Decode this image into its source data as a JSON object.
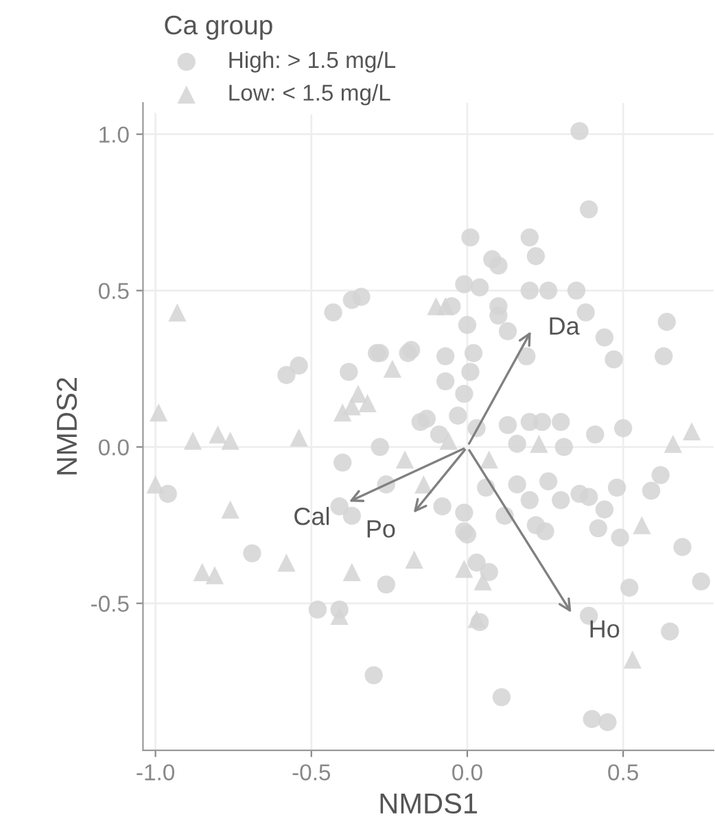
{
  "chart_data": {
    "type": "scatter",
    "xlabel": "NMDS1",
    "ylabel": "NMDS2",
    "legend_title": "Ca group",
    "legend": "top left",
    "grid": true,
    "annotations": [
      "Da",
      "Cal",
      "Po",
      "Ho"
    ],
    "xlim": [
      -1.04,
      0.79
    ],
    "ylim": [
      -0.97,
      1.1
    ],
    "xticks": [
      {
        "value": -1.0,
        "label": "-1.0"
      },
      {
        "value": -0.5,
        "label": "-0.5"
      },
      {
        "value": 0.0,
        "label": "0.0"
      },
      {
        "value": 0.5,
        "label": "0.5"
      }
    ],
    "yticks": [
      {
        "value": -0.5,
        "label": "-0.5"
      },
      {
        "value": 0.0,
        "label": "0.0"
      },
      {
        "value": 0.5,
        "label": "0.5"
      },
      {
        "value": 1.0,
        "label": "1.0"
      }
    ],
    "series": [
      {
        "name": "High: > 1.5 mg/L",
        "color": "#d3d3d3",
        "marker": "circle",
        "x": [
          0.01,
          0.2,
          0.08,
          0.1,
          0.22,
          -0.01,
          0.04,
          0.2,
          0.26,
          0.35,
          -0.05,
          0.1,
          0.1,
          0.13,
          0.38,
          0.64,
          0.44,
          0.47,
          0.63,
          0.0,
          0.19,
          0.02,
          -0.07,
          0.01,
          -0.07,
          -0.01,
          -0.18,
          0.36,
          0.39,
          -0.15,
          -0.13,
          -0.09,
          -0.03,
          0.03,
          0.13,
          0.2,
          0.24,
          0.3,
          0.16,
          0.31,
          0.41,
          0.5,
          -0.43,
          -0.37,
          -0.34,
          -0.58,
          -0.54,
          -0.38,
          -0.29,
          -0.28,
          -0.19,
          -0.28,
          -0.4,
          -0.96,
          -0.26,
          -0.41,
          -0.37,
          -0.69,
          -0.26,
          -0.48,
          -0.41,
          -0.3,
          0.16,
          0.26,
          0.06,
          0.2,
          0.3,
          0.36,
          0.39,
          0.44,
          0.48,
          0.62,
          0.59,
          -0.08,
          -0.01,
          0.12,
          0.22,
          0.25,
          -0.01,
          0.0,
          0.42,
          0.49,
          0.69,
          0.03,
          0.07,
          0.52,
          0.75,
          0.39,
          0.04,
          0.65,
          0.11,
          0.4,
          0.45
        ],
        "values": [
          0.67,
          0.67,
          0.6,
          0.58,
          0.61,
          0.52,
          0.51,
          0.5,
          0.5,
          0.5,
          0.45,
          0.45,
          0.42,
          0.37,
          0.43,
          0.4,
          0.35,
          0.28,
          0.29,
          0.39,
          0.29,
          0.3,
          0.29,
          0.24,
          0.21,
          0.17,
          0.31,
          1.01,
          0.76,
          0.08,
          0.09,
          0.04,
          0.1,
          0.06,
          0.07,
          0.08,
          0.08,
          0.08,
          0.01,
          0.0,
          0.04,
          0.06,
          0.43,
          0.47,
          0.48,
          0.23,
          0.26,
          0.24,
          0.3,
          0.3,
          0.3,
          0.0,
          -0.05,
          -0.15,
          -0.12,
          -0.19,
          -0.22,
          -0.34,
          -0.44,
          -0.52,
          -0.52,
          -0.73,
          -0.12,
          -0.11,
          -0.13,
          -0.17,
          -0.17,
          -0.15,
          -0.16,
          -0.2,
          -0.13,
          -0.09,
          -0.14,
          -0.19,
          -0.21,
          -0.22,
          -0.25,
          -0.27,
          -0.27,
          -0.28,
          -0.26,
          -0.29,
          -0.32,
          -0.37,
          -0.4,
          -0.45,
          -0.43,
          -0.54,
          -0.56,
          -0.59,
          -0.8,
          -0.87,
          -0.88
        ]
      },
      {
        "name": "Low: < 1.5 mg/L",
        "color": "#d3d3d3",
        "marker": "triangle",
        "x": [
          -0.1,
          -0.07,
          -0.06,
          0.23,
          0.66,
          0.72,
          -0.93,
          -0.24,
          -0.35,
          -0.32,
          -0.4,
          -0.37,
          -0.99,
          -0.88,
          -0.8,
          -0.76,
          -0.54,
          -0.2,
          -1.0,
          -0.76,
          -0.85,
          -0.81,
          -0.58,
          -0.37,
          -0.17,
          -0.41,
          0.07,
          -0.14,
          -0.01,
          0.05,
          0.03,
          0.56,
          0.53
        ],
        "values": [
          0.45,
          0.45,
          0.02,
          0.01,
          0.01,
          0.05,
          0.43,
          0.25,
          0.17,
          0.14,
          0.11,
          0.13,
          0.11,
          0.02,
          0.04,
          0.02,
          0.03,
          -0.04,
          -0.12,
          -0.2,
          -0.4,
          -0.41,
          -0.37,
          -0.4,
          -0.36,
          -0.54,
          -0.04,
          -0.12,
          -0.39,
          -0.43,
          -0.55,
          -0.25,
          -0.68
        ]
      }
    ]
  }
}
